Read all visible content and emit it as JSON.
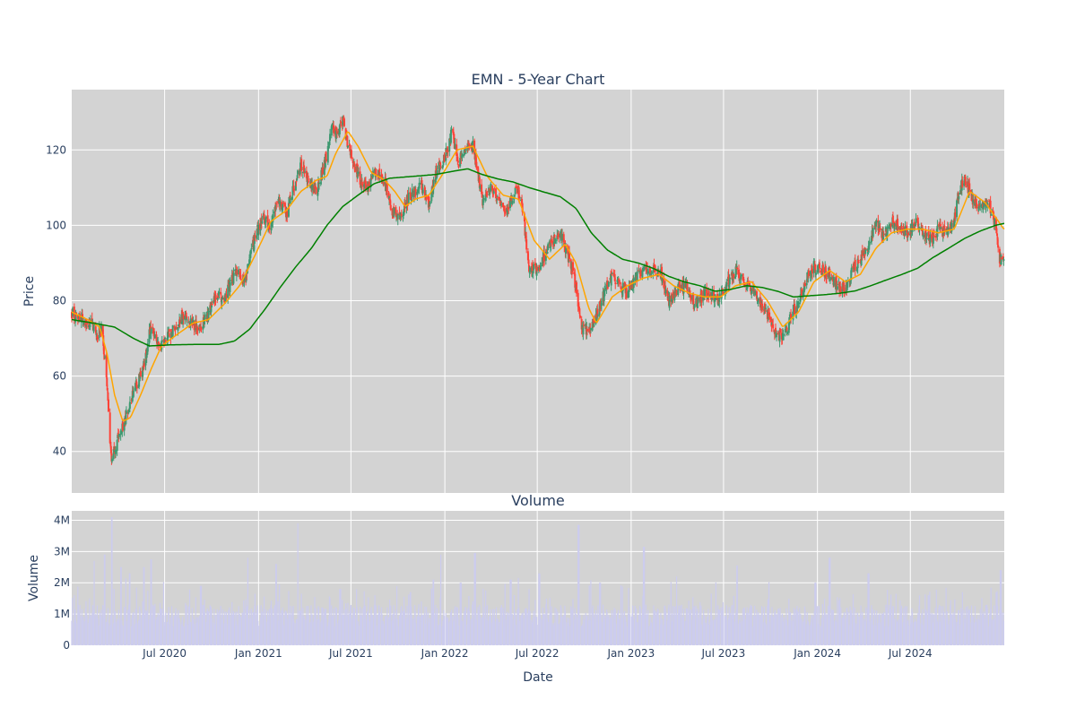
{
  "chart_data": [
    {
      "type": "candlestick",
      "title": "EMN - 5-Year Chart",
      "ylabel": "Price",
      "ylim": [
        29,
        136
      ],
      "yticks": [
        40,
        60,
        80,
        100,
        120
      ],
      "grid": true,
      "colors": {
        "background": "#d3d3d3",
        "grid": "#ffffff",
        "up": "#3d9970",
        "down": "#ff4136",
        "ma_short": "#ffa500",
        "ma_long": "#008000",
        "text": "#2a3f5f"
      },
      "x_start": "2020-01-01",
      "x_end": "2025-01-01",
      "price_anchors": [
        [
          "2020-01-01",
          77
        ],
        [
          "2020-01-20",
          75
        ],
        [
          "2020-02-05",
          74
        ],
        [
          "2020-02-20",
          71
        ],
        [
          "2020-02-28",
          73
        ],
        [
          "2020-03-05",
          66
        ],
        [
          "2020-03-12",
          55
        ],
        [
          "2020-03-18",
          38
        ],
        [
          "2020-03-25",
          40
        ],
        [
          "2020-04-02",
          44
        ],
        [
          "2020-04-12",
          47
        ],
        [
          "2020-04-22",
          52
        ],
        [
          "2020-05-05",
          57
        ],
        [
          "2020-05-20",
          62
        ],
        [
          "2020-06-05",
          74
        ],
        [
          "2020-06-15",
          70
        ],
        [
          "2020-06-25",
          68
        ],
        [
          "2020-07-05",
          70
        ],
        [
          "2020-07-20",
          73
        ],
        [
          "2020-08-05",
          76
        ],
        [
          "2020-08-25",
          74
        ],
        [
          "2020-09-10",
          73
        ],
        [
          "2020-09-25",
          76
        ],
        [
          "2020-10-10",
          82
        ],
        [
          "2020-10-25",
          80
        ],
        [
          "2020-11-05",
          84
        ],
        [
          "2020-11-20",
          88
        ],
        [
          "2020-12-05",
          85
        ],
        [
          "2020-12-25",
          97
        ],
        [
          "2021-01-10",
          102
        ],
        [
          "2021-01-25",
          100
        ],
        [
          "2021-02-10",
          107
        ],
        [
          "2021-02-25",
          103
        ],
        [
          "2021-03-10",
          110
        ],
        [
          "2021-03-25",
          116
        ],
        [
          "2021-04-10",
          111
        ],
        [
          "2021-04-25",
          109
        ],
        [
          "2021-05-10",
          116
        ],
        [
          "2021-05-25",
          126
        ],
        [
          "2021-06-05",
          124
        ],
        [
          "2021-06-15",
          128
        ],
        [
          "2021-06-25",
          121
        ],
        [
          "2021-07-05",
          117
        ],
        [
          "2021-07-20",
          112
        ],
        [
          "2021-08-05",
          110
        ],
        [
          "2021-08-20",
          115
        ],
        [
          "2021-09-05",
          112
        ],
        [
          "2021-09-20",
          104
        ],
        [
          "2021-10-05",
          102
        ],
        [
          "2021-10-25",
          108
        ],
        [
          "2021-11-15",
          111
        ],
        [
          "2021-12-01",
          106
        ],
        [
          "2021-12-15",
          114
        ],
        [
          "2022-01-01",
          118
        ],
        [
          "2022-01-15",
          125
        ],
        [
          "2022-01-28",
          117
        ],
        [
          "2022-02-10",
          120
        ],
        [
          "2022-02-25",
          121
        ],
        [
          "2022-03-05",
          116
        ],
        [
          "2022-03-15",
          106
        ],
        [
          "2022-04-01",
          110
        ],
        [
          "2022-04-15",
          107
        ],
        [
          "2022-04-28",
          103
        ],
        [
          "2022-05-10",
          106
        ],
        [
          "2022-05-20",
          110
        ],
        [
          "2022-06-01",
          106
        ],
        [
          "2022-06-15",
          89
        ],
        [
          "2022-07-01",
          88
        ],
        [
          "2022-07-15",
          92
        ],
        [
          "2022-08-01",
          96
        ],
        [
          "2022-08-15",
          99
        ],
        [
          "2022-08-25",
          94
        ],
        [
          "2022-09-10",
          88
        ],
        [
          "2022-09-25",
          73
        ],
        [
          "2022-10-10",
          72
        ],
        [
          "2022-10-25",
          76
        ],
        [
          "2022-11-10",
          82
        ],
        [
          "2022-11-25",
          87
        ],
        [
          "2022-12-10",
          84
        ],
        [
          "2022-12-25",
          82
        ],
        [
          "2023-01-10",
          86
        ],
        [
          "2023-01-28",
          89
        ],
        [
          "2023-02-15",
          88
        ],
        [
          "2023-03-01",
          87
        ],
        [
          "2023-03-15",
          80
        ],
        [
          "2023-04-01",
          83
        ],
        [
          "2023-04-20",
          84
        ],
        [
          "2023-05-05",
          79
        ],
        [
          "2023-05-20",
          81
        ],
        [
          "2023-06-05",
          82
        ],
        [
          "2023-06-20",
          80
        ],
        [
          "2023-07-05",
          84
        ],
        [
          "2023-07-25",
          88
        ],
        [
          "2023-08-10",
          85
        ],
        [
          "2023-08-25",
          83
        ],
        [
          "2023-09-10",
          80
        ],
        [
          "2023-09-25",
          76
        ],
        [
          "2023-10-10",
          72
        ],
        [
          "2023-10-25",
          70
        ],
        [
          "2023-11-10",
          76
        ],
        [
          "2023-11-25",
          80
        ],
        [
          "2023-12-10",
          86
        ],
        [
          "2023-12-25",
          89
        ],
        [
          "2024-01-10",
          88
        ],
        [
          "2024-01-25",
          87
        ],
        [
          "2024-02-10",
          84
        ],
        [
          "2024-02-25",
          83
        ],
        [
          "2024-03-10",
          88
        ],
        [
          "2024-03-25",
          91
        ],
        [
          "2024-04-10",
          95
        ],
        [
          "2024-04-25",
          100
        ],
        [
          "2024-05-10",
          97
        ],
        [
          "2024-05-25",
          101
        ],
        [
          "2024-06-10",
          100
        ],
        [
          "2024-06-25",
          98
        ],
        [
          "2024-07-10",
          101
        ],
        [
          "2024-07-25",
          98
        ],
        [
          "2024-08-10",
          96
        ],
        [
          "2024-08-25",
          99
        ],
        [
          "2024-09-10",
          98
        ],
        [
          "2024-09-25",
          101
        ],
        [
          "2024-10-05",
          110
        ],
        [
          "2024-10-15",
          112
        ],
        [
          "2024-10-28",
          108
        ],
        [
          "2024-11-10",
          104
        ],
        [
          "2024-11-25",
          106
        ],
        [
          "2024-12-08",
          104
        ],
        [
          "2024-12-18",
          98
        ],
        [
          "2024-12-22",
          91
        ],
        [
          "2024-12-31",
          91
        ]
      ],
      "ma_short_anchors": [
        [
          "2020-01-01",
          77
        ],
        [
          "2020-02-01",
          75
        ],
        [
          "2020-02-25",
          73
        ],
        [
          "2020-03-10",
          66
        ],
        [
          "2020-03-25",
          55
        ],
        [
          "2020-04-10",
          48
        ],
        [
          "2020-04-25",
          49
        ],
        [
          "2020-05-15",
          55
        ],
        [
          "2020-06-05",
          62
        ],
        [
          "2020-06-25",
          68
        ],
        [
          "2020-07-25",
          71
        ],
        [
          "2020-08-25",
          74
        ],
        [
          "2020-09-25",
          75
        ],
        [
          "2020-10-25",
          79
        ],
        [
          "2020-11-25",
          84
        ],
        [
          "2020-12-25",
          92
        ],
        [
          "2021-01-25",
          101
        ],
        [
          "2021-02-25",
          104
        ],
        [
          "2021-03-25",
          109
        ],
        [
          "2021-04-25",
          112
        ],
        [
          "2021-05-15",
          113
        ],
        [
          "2021-06-01",
          119
        ],
        [
          "2021-06-25",
          125
        ],
        [
          "2021-07-15",
          121
        ],
        [
          "2021-08-10",
          114
        ],
        [
          "2021-09-05",
          112
        ],
        [
          "2021-09-25",
          109
        ],
        [
          "2021-10-15",
          105
        ],
        [
          "2021-11-05",
          107
        ],
        [
          "2021-12-01",
          108
        ],
        [
          "2021-12-25",
          113
        ],
        [
          "2022-01-25",
          120
        ],
        [
          "2022-02-25",
          121
        ],
        [
          "2022-03-25",
          113
        ],
        [
          "2022-04-25",
          108
        ],
        [
          "2022-05-25",
          107
        ],
        [
          "2022-06-25",
          96
        ],
        [
          "2022-07-25",
          91
        ],
        [
          "2022-08-25",
          95
        ],
        [
          "2022-09-15",
          90
        ],
        [
          "2022-10-10",
          78
        ],
        [
          "2022-10-25",
          74
        ],
        [
          "2022-11-25",
          81
        ],
        [
          "2022-12-25",
          84
        ],
        [
          "2023-01-25",
          86
        ],
        [
          "2023-02-25",
          87
        ],
        [
          "2023-03-25",
          84
        ],
        [
          "2023-04-25",
          82
        ],
        [
          "2023-05-25",
          81
        ],
        [
          "2023-06-25",
          81
        ],
        [
          "2023-07-25",
          84
        ],
        [
          "2023-08-25",
          85
        ],
        [
          "2023-09-25",
          80
        ],
        [
          "2023-10-25",
          73
        ],
        [
          "2023-11-25",
          77
        ],
        [
          "2023-12-25",
          85
        ],
        [
          "2024-01-25",
          88
        ],
        [
          "2024-02-25",
          85
        ],
        [
          "2024-03-25",
          87
        ],
        [
          "2024-04-25",
          94
        ],
        [
          "2024-05-25",
          98
        ],
        [
          "2024-06-25",
          99
        ],
        [
          "2024-07-25",
          99
        ],
        [
          "2024-08-25",
          98
        ],
        [
          "2024-09-25",
          99
        ],
        [
          "2024-10-25",
          109
        ],
        [
          "2024-11-25",
          106
        ],
        [
          "2024-12-31",
          99
        ]
      ],
      "ma_long_anchors": [
        [
          "2020-01-01",
          75
        ],
        [
          "2020-02-15",
          74
        ],
        [
          "2020-03-25",
          73
        ],
        [
          "2020-05-01",
          70
        ],
        [
          "2020-06-01",
          68
        ],
        [
          "2020-07-15",
          68.3
        ],
        [
          "2020-09-01",
          68.4
        ],
        [
          "2020-10-15",
          68.4
        ],
        [
          "2020-11-15",
          69.3
        ],
        [
          "2020-12-15",
          72.5
        ],
        [
          "2021-01-15",
          78
        ],
        [
          "2021-02-15",
          84
        ],
        [
          "2021-03-15",
          89
        ],
        [
          "2021-04-15",
          94
        ],
        [
          "2021-05-15",
          100
        ],
        [
          "2021-06-15",
          105
        ],
        [
          "2021-07-15",
          108
        ],
        [
          "2021-08-15",
          111
        ],
        [
          "2021-09-15",
          112.5
        ],
        [
          "2021-11-01",
          113
        ],
        [
          "2021-12-15",
          113.5
        ],
        [
          "2022-01-15",
          114.3
        ],
        [
          "2022-02-15",
          115
        ],
        [
          "2022-03-15",
          113.5
        ],
        [
          "2022-04-15",
          112.3
        ],
        [
          "2022-05-15",
          111.5
        ],
        [
          "2022-06-15",
          110
        ],
        [
          "2022-07-15",
          108.8
        ],
        [
          "2022-08-15",
          107.6
        ],
        [
          "2022-09-15",
          104.5
        ],
        [
          "2022-10-15",
          98
        ],
        [
          "2022-11-15",
          93.5
        ],
        [
          "2022-12-15",
          91
        ],
        [
          "2023-01-15",
          90
        ],
        [
          "2023-02-15",
          88.5
        ],
        [
          "2023-03-15",
          86.5
        ],
        [
          "2023-04-15",
          85
        ],
        [
          "2023-05-15",
          84
        ],
        [
          "2023-06-15",
          82.5
        ],
        [
          "2023-07-15",
          83
        ],
        [
          "2023-08-15",
          84
        ],
        [
          "2023-09-15",
          83.5
        ],
        [
          "2023-10-15",
          82.5
        ],
        [
          "2023-11-15",
          81
        ],
        [
          "2023-12-15",
          81.3
        ],
        [
          "2024-01-15",
          81.6
        ],
        [
          "2024-02-15",
          82
        ],
        [
          "2024-03-15",
          82.6
        ],
        [
          "2024-04-15",
          84
        ],
        [
          "2024-05-15",
          85.5
        ],
        [
          "2024-06-15",
          87
        ],
        [
          "2024-07-15",
          88.6
        ],
        [
          "2024-08-15",
          91.5
        ],
        [
          "2024-09-15",
          94
        ],
        [
          "2024-10-15",
          96.5
        ],
        [
          "2024-11-15",
          98.5
        ],
        [
          "2024-12-15",
          100
        ],
        [
          "2024-12-31",
          100.5
        ]
      ]
    },
    {
      "type": "bar",
      "title": "Volume",
      "xlabel": "Date",
      "ylabel": "Volume",
      "ylim": [
        0,
        4300000
      ],
      "yticks": [
        0,
        1000000,
        2000000,
        3000000,
        4000000
      ],
      "ytick_labels": [
        "0",
        "1M",
        "2M",
        "3M",
        "4M"
      ],
      "xticks": [
        "2020-07-01",
        "2021-01-01",
        "2021-07-01",
        "2022-01-01",
        "2022-07-01",
        "2023-01-01",
        "2023-07-01",
        "2024-01-01",
        "2024-07-01"
      ],
      "xtick_labels": [
        "Jul 2020",
        "Jan 2021",
        "Jul 2021",
        "Jan 2022",
        "Jul 2022",
        "Jan 2023",
        "Jul 2023",
        "Jan 2024",
        "Jul 2024"
      ],
      "colors": {
        "bar": "#ccccee",
        "background": "#d3d3d3"
      },
      "spikes": [
        [
          "2020-02-15",
          2700000
        ],
        [
          "2020-03-06",
          2900000
        ],
        [
          "2020-03-20",
          4100000
        ],
        [
          "2020-04-06",
          2500000
        ],
        [
          "2020-04-24",
          2300000
        ],
        [
          "2020-05-22",
          2500000
        ],
        [
          "2020-06-05",
          2750000
        ],
        [
          "2020-09-10",
          1900000
        ],
        [
          "2020-12-12",
          2800000
        ],
        [
          "2021-02-05",
          2600000
        ],
        [
          "2021-03-20",
          3900000
        ],
        [
          "2021-06-10",
          1800000
        ],
        [
          "2021-10-25",
          1700000
        ],
        [
          "2021-12-10",
          2100000
        ],
        [
          "2021-12-25",
          2900000
        ],
        [
          "2022-02-01",
          2000000
        ],
        [
          "2022-03-01",
          2950000
        ],
        [
          "2022-05-10",
          2100000
        ],
        [
          "2022-07-05",
          2300000
        ],
        [
          "2022-09-20",
          3850000
        ],
        [
          "2022-11-01",
          2000000
        ],
        [
          "2023-01-26",
          3150000
        ],
        [
          "2023-04-01",
          2200000
        ],
        [
          "2023-07-28",
          2550000
        ],
        [
          "2023-12-28",
          2000000
        ],
        [
          "2024-01-25",
          2800000
        ],
        [
          "2024-04-10",
          2300000
        ],
        [
          "2024-08-05",
          1600000
        ],
        [
          "2024-10-12",
          1700000
        ],
        [
          "2024-12-25",
          2400000
        ]
      ]
    }
  ]
}
